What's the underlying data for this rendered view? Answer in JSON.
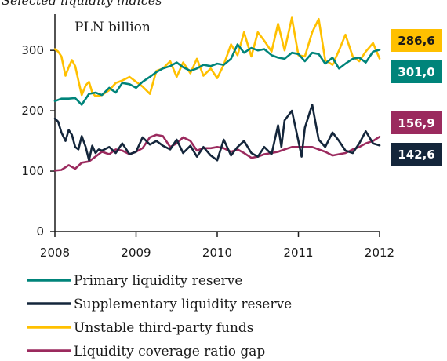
{
  "chart_data": {
    "type": "line",
    "title": "Selected liquidity indices",
    "ylabel": "PLN billion",
    "xlabel": "",
    "ylim": [
      0,
      360
    ],
    "yticks": [
      0,
      100,
      200,
      300
    ],
    "x_start": 2008,
    "x_end": 2012,
    "xticks": [
      "2008",
      "2009",
      "2010",
      "2011",
      "2012"
    ],
    "grid": false,
    "legend_position": "bottom",
    "series": [
      {
        "name": "Primary liquidity reserve",
        "color": "#00847a",
        "end_label": "301,0",
        "label_text_color": "#ffffff",
        "points": [
          [
            2008.0,
            216
          ],
          [
            2008.08,
            220
          ],
          [
            2008.17,
            220
          ],
          [
            2008.25,
            221
          ],
          [
            2008.33,
            210
          ],
          [
            2008.42,
            228
          ],
          [
            2008.5,
            230
          ],
          [
            2008.58,
            226
          ],
          [
            2008.67,
            238
          ],
          [
            2008.75,
            230
          ],
          [
            2008.83,
            246
          ],
          [
            2008.92,
            244
          ],
          [
            2009.0,
            238
          ],
          [
            2009.08,
            248
          ],
          [
            2009.17,
            256
          ],
          [
            2009.25,
            264
          ],
          [
            2009.33,
            270
          ],
          [
            2009.42,
            274
          ],
          [
            2009.5,
            280
          ],
          [
            2009.58,
            272
          ],
          [
            2009.67,
            266
          ],
          [
            2009.75,
            270
          ],
          [
            2009.83,
            276
          ],
          [
            2009.92,
            274
          ],
          [
            2010.0,
            278
          ],
          [
            2010.08,
            276
          ],
          [
            2010.17,
            286
          ],
          [
            2010.25,
            310
          ],
          [
            2010.33,
            296
          ],
          [
            2010.42,
            304
          ],
          [
            2010.5,
            300
          ],
          [
            2010.58,
            302
          ],
          [
            2010.67,
            292
          ],
          [
            2010.75,
            288
          ],
          [
            2010.83,
            286
          ],
          [
            2010.92,
            296
          ],
          [
            2011.0,
            294
          ],
          [
            2011.08,
            282
          ],
          [
            2011.17,
            296
          ],
          [
            2011.25,
            294
          ],
          [
            2011.33,
            278
          ],
          [
            2011.42,
            288
          ],
          [
            2011.5,
            270
          ],
          [
            2011.58,
            278
          ],
          [
            2011.67,
            286
          ],
          [
            2011.75,
            288
          ],
          [
            2011.83,
            280
          ],
          [
            2011.92,
            298
          ],
          [
            2012.0,
            301
          ]
        ]
      },
      {
        "name": "Supplementary liquidity reserve",
        "color": "#14263b",
        "end_label": "142,6",
        "label_text_color": "#ffffff",
        "points": [
          [
            2008.0,
            187
          ],
          [
            2008.04,
            182
          ],
          [
            2008.08,
            164
          ],
          [
            2008.13,
            150
          ],
          [
            2008.17,
            168
          ],
          [
            2008.21,
            160
          ],
          [
            2008.25,
            140
          ],
          [
            2008.29,
            136
          ],
          [
            2008.33,
            158
          ],
          [
            2008.38,
            140
          ],
          [
            2008.42,
            118
          ],
          [
            2008.46,
            142
          ],
          [
            2008.5,
            130
          ],
          [
            2008.54,
            136
          ],
          [
            2008.58,
            134
          ],
          [
            2008.67,
            140
          ],
          [
            2008.75,
            130
          ],
          [
            2008.83,
            146
          ],
          [
            2008.92,
            128
          ],
          [
            2009.0,
            132
          ],
          [
            2009.08,
            156
          ],
          [
            2009.17,
            144
          ],
          [
            2009.25,
            150
          ],
          [
            2009.33,
            142
          ],
          [
            2009.42,
            136
          ],
          [
            2009.5,
            152
          ],
          [
            2009.58,
            130
          ],
          [
            2009.67,
            142
          ],
          [
            2009.75,
            124
          ],
          [
            2009.83,
            140
          ],
          [
            2009.92,
            126
          ],
          [
            2010.0,
            118
          ],
          [
            2010.08,
            152
          ],
          [
            2010.17,
            126
          ],
          [
            2010.25,
            140
          ],
          [
            2010.33,
            150
          ],
          [
            2010.42,
            130
          ],
          [
            2010.5,
            124
          ],
          [
            2010.58,
            140
          ],
          [
            2010.67,
            128
          ],
          [
            2010.75,
            176
          ],
          [
            2010.79,
            140
          ],
          [
            2010.83,
            184
          ],
          [
            2010.92,
            200
          ],
          [
            2011.0,
            150
          ],
          [
            2011.04,
            124
          ],
          [
            2011.08,
            172
          ],
          [
            2011.17,
            210
          ],
          [
            2011.25,
            152
          ],
          [
            2011.33,
            140
          ],
          [
            2011.42,
            164
          ],
          [
            2011.5,
            150
          ],
          [
            2011.58,
            134
          ],
          [
            2011.67,
            130
          ],
          [
            2011.75,
            146
          ],
          [
            2011.83,
            166
          ],
          [
            2011.92,
            146
          ],
          [
            2012.0,
            142.6
          ]
        ]
      },
      {
        "name": "Unstable third-party funds",
        "color": "#ffc000",
        "end_label": "286,6",
        "label_text_color": "#1a1a1a",
        "points": [
          [
            2008.0,
            302
          ],
          [
            2008.04,
            298
          ],
          [
            2008.08,
            290
          ],
          [
            2008.13,
            258
          ],
          [
            2008.17,
            272
          ],
          [
            2008.21,
            284
          ],
          [
            2008.25,
            274
          ],
          [
            2008.29,
            250
          ],
          [
            2008.33,
            226
          ],
          [
            2008.38,
            242
          ],
          [
            2008.42,
            248
          ],
          [
            2008.46,
            230
          ],
          [
            2008.5,
            224
          ],
          [
            2008.58,
            226
          ],
          [
            2008.67,
            234
          ],
          [
            2008.75,
            246
          ],
          [
            2008.83,
            250
          ],
          [
            2008.92,
            256
          ],
          [
            2009.0,
            248
          ],
          [
            2009.08,
            240
          ],
          [
            2009.17,
            228
          ],
          [
            2009.25,
            266
          ],
          [
            2009.33,
            270
          ],
          [
            2009.42,
            282
          ],
          [
            2009.5,
            256
          ],
          [
            2009.58,
            280
          ],
          [
            2009.67,
            262
          ],
          [
            2009.75,
            286
          ],
          [
            2009.83,
            258
          ],
          [
            2009.92,
            270
          ],
          [
            2010.0,
            254
          ],
          [
            2010.08,
            276
          ],
          [
            2010.17,
            310
          ],
          [
            2010.25,
            292
          ],
          [
            2010.33,
            330
          ],
          [
            2010.42,
            290
          ],
          [
            2010.5,
            330
          ],
          [
            2010.58,
            316
          ],
          [
            2010.67,
            298
          ],
          [
            2010.75,
            344
          ],
          [
            2010.83,
            300
          ],
          [
            2010.92,
            354
          ],
          [
            2011.0,
            292
          ],
          [
            2011.08,
            290
          ],
          [
            2011.17,
            330
          ],
          [
            2011.25,
            352
          ],
          [
            2011.33,
            284
          ],
          [
            2011.42,
            276
          ],
          [
            2011.5,
            300
          ],
          [
            2011.58,
            326
          ],
          [
            2011.67,
            290
          ],
          [
            2011.75,
            282
          ],
          [
            2011.83,
            298
          ],
          [
            2011.92,
            312
          ],
          [
            2012.0,
            286.6
          ]
        ]
      },
      {
        "name": "Liquidity coverage ratio gap",
        "color": "#9b2a5e",
        "end_label": "156,9",
        "label_text_color": "#ffffff",
        "points": [
          [
            2008.0,
            101
          ],
          [
            2008.08,
            102
          ],
          [
            2008.17,
            110
          ],
          [
            2008.25,
            104
          ],
          [
            2008.33,
            114
          ],
          [
            2008.42,
            116
          ],
          [
            2008.5,
            124
          ],
          [
            2008.58,
            132
          ],
          [
            2008.67,
            128
          ],
          [
            2008.75,
            136
          ],
          [
            2008.83,
            134
          ],
          [
            2008.92,
            128
          ],
          [
            2009.0,
            132
          ],
          [
            2009.08,
            138
          ],
          [
            2009.17,
            156
          ],
          [
            2009.25,
            160
          ],
          [
            2009.33,
            158
          ],
          [
            2009.42,
            140
          ],
          [
            2009.5,
            146
          ],
          [
            2009.58,
            156
          ],
          [
            2009.67,
            150
          ],
          [
            2009.75,
            134
          ],
          [
            2009.83,
            138
          ],
          [
            2009.92,
            138
          ],
          [
            2010.0,
            140
          ],
          [
            2010.08,
            138
          ],
          [
            2010.17,
            132
          ],
          [
            2010.25,
            136
          ],
          [
            2010.33,
            130
          ],
          [
            2010.42,
            122
          ],
          [
            2010.5,
            124
          ],
          [
            2010.58,
            128
          ],
          [
            2010.67,
            130
          ],
          [
            2010.75,
            132
          ],
          [
            2010.83,
            136
          ],
          [
            2010.92,
            140
          ],
          [
            2011.0,
            140
          ],
          [
            2011.08,
            140
          ],
          [
            2011.17,
            140
          ],
          [
            2011.25,
            136
          ],
          [
            2011.33,
            132
          ],
          [
            2011.42,
            126
          ],
          [
            2011.5,
            128
          ],
          [
            2011.58,
            130
          ],
          [
            2011.67,
            136
          ],
          [
            2011.75,
            140
          ],
          [
            2011.83,
            146
          ],
          [
            2011.92,
            150
          ],
          [
            2012.0,
            156.9
          ]
        ]
      }
    ]
  }
}
